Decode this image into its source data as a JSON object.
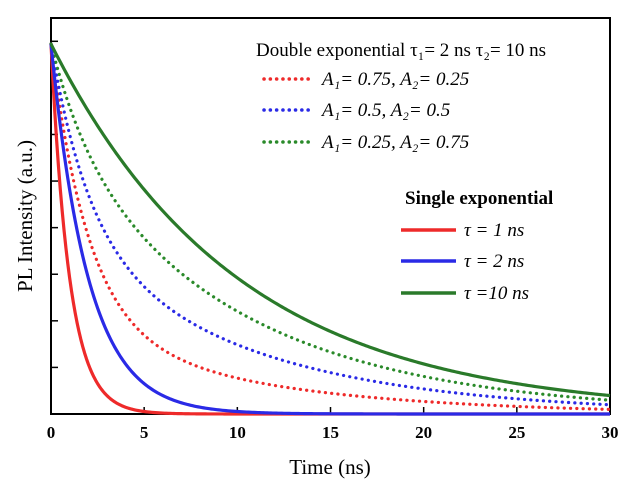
{
  "chart_data": {
    "type": "line",
    "title": "",
    "xlabel": "Time (ns)",
    "ylabel": "PL Intensity (a.u.)",
    "xlim": [
      0,
      30
    ],
    "ylim": [
      0,
      1
    ],
    "x_ticks": [
      "0",
      "5",
      "10",
      "15",
      "20",
      "25",
      "30"
    ],
    "y_ticks_labeled": false,
    "grid": false,
    "legend_groups": [
      {
        "heading": "Double exponential τ₁= 2 ns  τ₂= 10 ns",
        "placement": "top-right",
        "line_style": "dotted",
        "entries": [
          {
            "label": "A₁= 0.75, A₂= 0.25",
            "color": "#ee2a2a"
          },
          {
            "label": "A₁= 0.5,   A₂= 0.5",
            "color": "#2a2ae6"
          },
          {
            "label": "A₁= 0.25, A₂= 0.75",
            "color": "#2a8a2a"
          }
        ]
      },
      {
        "heading": "Single exponential",
        "placement": "right",
        "line_style": "solid",
        "entries": [
          {
            "label": "τ = 1 ns",
            "color": "#ee2a2a"
          },
          {
            "label": "τ = 2 ns",
            "color": "#2a2ae6"
          },
          {
            "label": "τ =10 ns",
            "color": "#2a7a2a"
          }
        ]
      }
    ],
    "series": [
      {
        "name": "τ = 1 ns",
        "kind": "single",
        "tau": 1,
        "color": "#ee2a2a",
        "style": "solid"
      },
      {
        "name": "τ = 2 ns",
        "kind": "single",
        "tau": 2,
        "color": "#2a2ae6",
        "style": "solid"
      },
      {
        "name": "τ =10 ns",
        "kind": "single",
        "tau": 10,
        "color": "#2a7a2a",
        "style": "solid"
      },
      {
        "name": "A₁= 0.75, A₂= 0.25",
        "kind": "double",
        "A1": 0.75,
        "tau1": 2,
        "A2": 0.25,
        "tau2": 10,
        "color": "#ee2a2a",
        "style": "dotted"
      },
      {
        "name": "A₁= 0.5,   A₂= 0.5",
        "kind": "double",
        "A1": 0.5,
        "tau1": 2,
        "A2": 0.5,
        "tau2": 10,
        "color": "#2a2ae6",
        "style": "dotted"
      },
      {
        "name": "A₁= 0.25, A₂= 0.75",
        "kind": "double",
        "A1": 0.25,
        "tau1": 2,
        "A2": 0.75,
        "tau2": 10,
        "color": "#2a8a2a",
        "style": "dotted"
      }
    ]
  }
}
